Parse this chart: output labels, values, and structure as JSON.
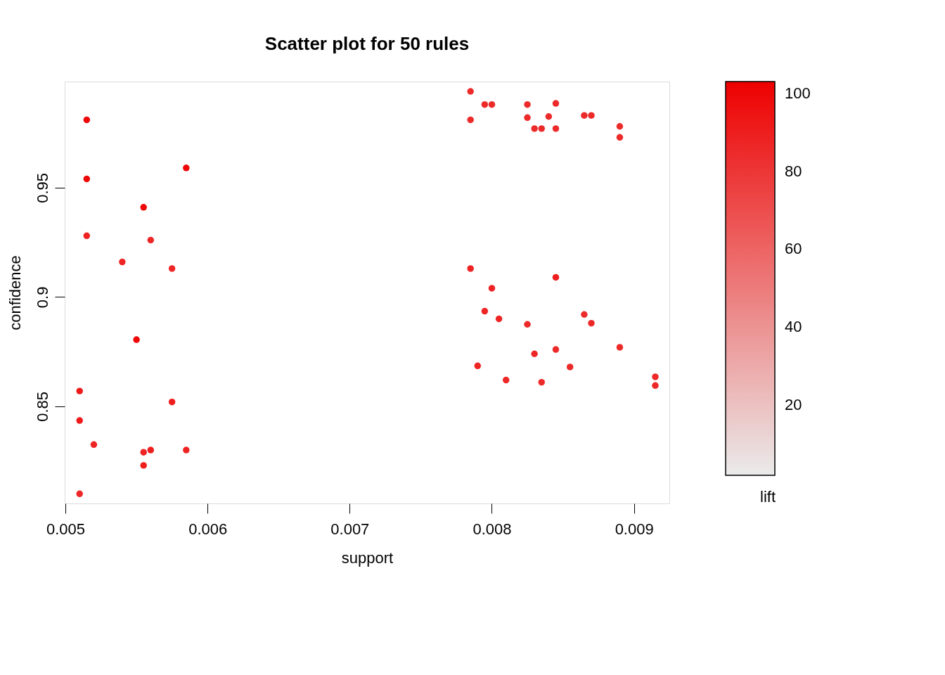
{
  "chart_data": {
    "type": "scatter",
    "title": "Scatter plot for 50 rules",
    "xlabel": "support",
    "ylabel": "confidence",
    "clabel": "lift",
    "xlim": [
      0.004995,
      0.009249
    ],
    "xticks": [
      0.005,
      0.006,
      0.007,
      0.008,
      0.009
    ],
    "ylim": [
      0.8056,
      0.9985
    ],
    "yticks": [
      0.85,
      0.9,
      0.95
    ],
    "clim": [
      2,
      103
    ],
    "cticks": [
      20,
      40,
      60,
      80,
      100
    ],
    "colors": [
      "#ebebeb",
      "#ee0000"
    ],
    "grid": false,
    "marker": "circle",
    "series": [
      {
        "x": [
          0.00515,
          0.00515,
          0.00515,
          0.00585,
          0.00555,
          0.0056,
          0.0054,
          0.00575,
          0.0055,
          0.0051,
          0.00575,
          0.0051,
          0.0052,
          0.00555,
          0.0056,
          0.00585,
          0.00555,
          0.0051,
          0.00785,
          0.00795,
          0.008,
          0.00825,
          0.00845,
          0.00785,
          0.00825,
          0.0084,
          0.0083,
          0.00835,
          0.00845,
          0.00865,
          0.0087,
          0.0089,
          0.0089,
          0.00785,
          0.008,
          0.00845,
          0.00805,
          0.00795,
          0.00825,
          0.00865,
          0.0087,
          0.0083,
          0.00845,
          0.0089,
          0.0079,
          0.00855,
          0.0081,
          0.00835,
          0.00915,
          0.00915
        ],
        "values": [
          0.981,
          0.954,
          0.928,
          0.959,
          0.941,
          0.926,
          0.916,
          0.913,
          0.8805,
          0.857,
          0.852,
          0.8435,
          0.8325,
          0.829,
          0.83,
          0.83,
          0.823,
          0.81,
          0.994,
          0.988,
          0.988,
          0.988,
          0.9885,
          0.981,
          0.982,
          0.9825,
          0.977,
          0.977,
          0.977,
          0.983,
          0.983,
          0.978,
          0.973,
          0.913,
          0.904,
          0.909,
          0.89,
          0.8935,
          0.8875,
          0.892,
          0.888,
          0.874,
          0.876,
          0.877,
          0.8685,
          0.868,
          0.862,
          0.861,
          0.8635,
          0.8595
        ],
        "cvalues": [
          100,
          100,
          88,
          100,
          100,
          87,
          87,
          87,
          100,
          92,
          90,
          92,
          87,
          87,
          90,
          88,
          90,
          86,
          85,
          85,
          85,
          85,
          85,
          85,
          85,
          85,
          85,
          85,
          85,
          85,
          85,
          85,
          85,
          88,
          88,
          90,
          88,
          87,
          86,
          85,
          85,
          87,
          85,
          85,
          87,
          85,
          86,
          85,
          86,
          86
        ]
      }
    ]
  }
}
